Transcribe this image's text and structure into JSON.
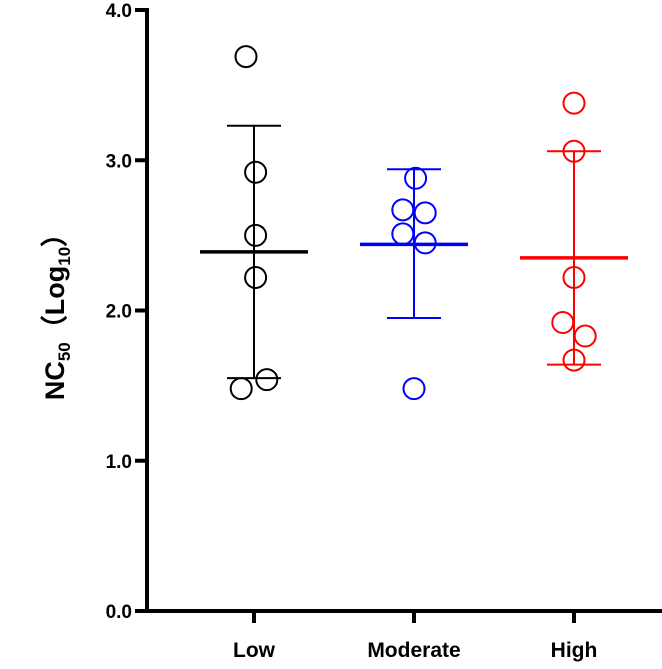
{
  "chart_data": {
    "type": "scatter",
    "ylabel": {
      "prefix": "NC",
      "prefix_sub": "50",
      "paren_open": "（",
      "log": "Log",
      "log_sub": "10",
      "paren_close": "）"
    },
    "ylim": [
      0,
      4
    ],
    "yticks": [
      {
        "value": 0,
        "label": "0.0"
      },
      {
        "value": 1,
        "label": "1.0"
      },
      {
        "value": 2,
        "label": "2.0"
      },
      {
        "value": 3,
        "label": "3.0"
      },
      {
        "value": 4,
        "label": "4.0"
      }
    ],
    "categories": [
      "Low",
      "Moderate",
      "High"
    ],
    "grid": false,
    "legend": "none",
    "series": [
      {
        "category": "Low",
        "color": "#000000",
        "mean": 2.39,
        "error_low": 1.55,
        "error_high": 3.23,
        "points": [
          {
            "x": -0.05,
            "y": 3.69
          },
          {
            "x": 0.01,
            "y": 2.92
          },
          {
            "x": 0.01,
            "y": 2.5
          },
          {
            "x": 0.01,
            "y": 2.22
          },
          {
            "x": -0.08,
            "y": 1.48
          },
          {
            "x": 0.08,
            "y": 1.54
          }
        ]
      },
      {
        "category": "Moderate",
        "color": "#0000ff",
        "mean": 2.44,
        "error_low": 1.95,
        "error_high": 2.94,
        "points": [
          {
            "x": 0.01,
            "y": 2.88
          },
          {
            "x": -0.07,
            "y": 2.67
          },
          {
            "x": 0.07,
            "y": 2.65
          },
          {
            "x": -0.07,
            "y": 2.51
          },
          {
            "x": 0.07,
            "y": 2.45
          },
          {
            "x": 0.0,
            "y": 1.48
          }
        ]
      },
      {
        "category": "High",
        "color": "#ff0000",
        "mean": 2.35,
        "error_low": 1.64,
        "error_high": 3.06,
        "points": [
          {
            "x": 0.0,
            "y": 3.38
          },
          {
            "x": 0.0,
            "y": 3.06
          },
          {
            "x": 0.0,
            "y": 2.22
          },
          {
            "x": -0.07,
            "y": 1.92
          },
          {
            "x": 0.07,
            "y": 1.83
          },
          {
            "x": 0.0,
            "y": 1.67
          }
        ]
      }
    ]
  }
}
